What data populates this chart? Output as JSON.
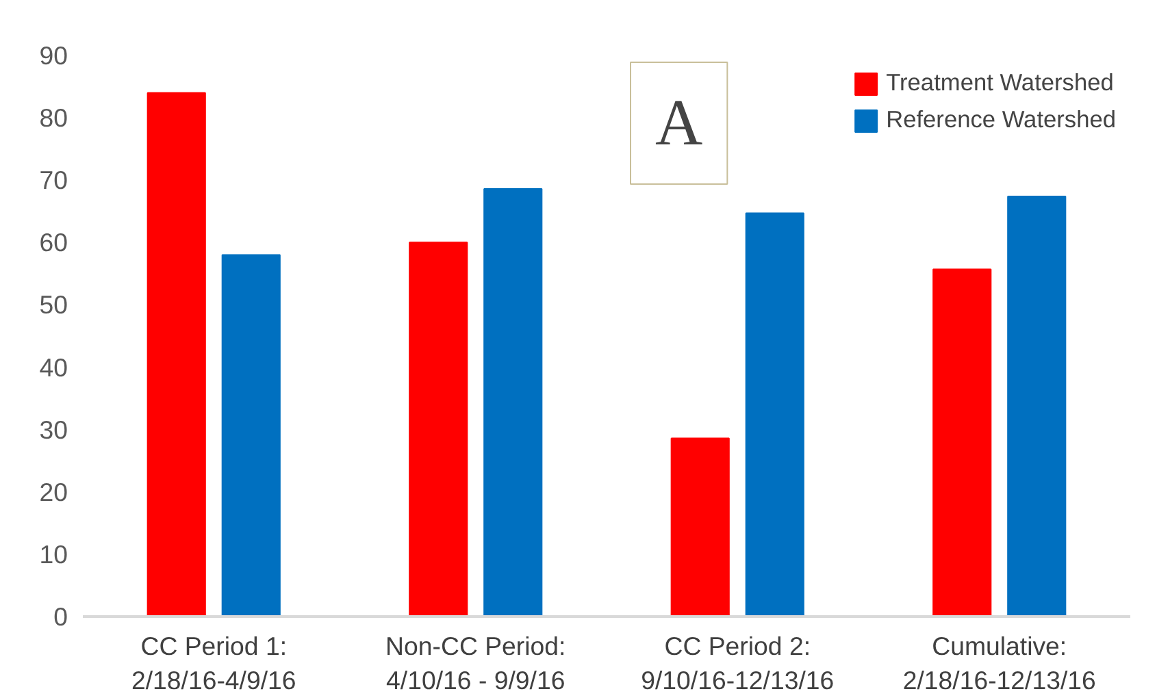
{
  "chart_data": {
    "type": "bar",
    "categories": [
      "CC Period 1:\n2/18/16-4/9/16",
      "Non-CC Period:\n4/10/16 - 9/9/16",
      "CC Period 2:\n9/10/16-12/13/16",
      "Cumulative:\n2/18/16-12/13/16"
    ],
    "series": [
      {
        "name": "Treatment Watershed",
        "color": "#ff0000",
        "values": [
          84,
          60,
          28.6,
          55.7
        ]
      },
      {
        "name": "Reference Watershed",
        "color": "#0070c0",
        "values": [
          58,
          68.6,
          64.7,
          67.4
        ]
      }
    ],
    "ylim": [
      0,
      90
    ],
    "yticks": [
      0,
      10,
      20,
      30,
      40,
      50,
      60,
      70,
      80,
      90
    ],
    "grid": false,
    "legend": "top right",
    "annotations": [
      "A"
    ]
  }
}
